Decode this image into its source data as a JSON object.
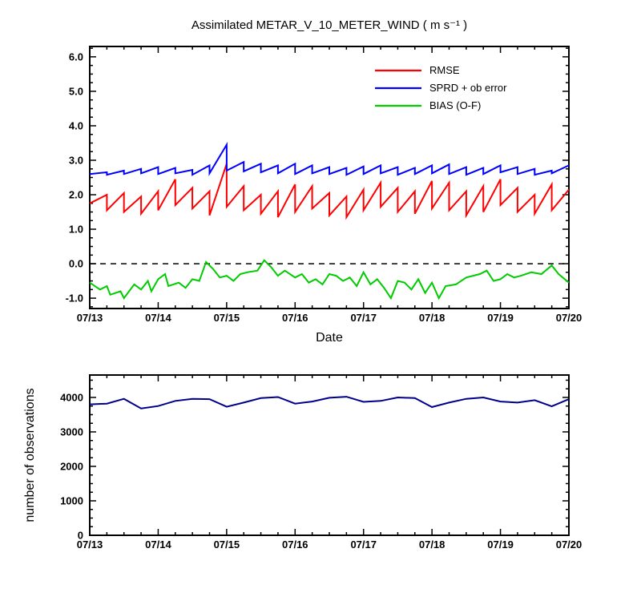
{
  "page": {
    "background": "#ffffff"
  },
  "chart_data": [
    {
      "type": "line",
      "title": "Assimilated METAR_V_10_METER_WIND ( m s⁻¹ )",
      "xlabel": "Date",
      "ylabel": "",
      "xlim": [
        0,
        7
      ],
      "ylim": [
        -1.3,
        6.3
      ],
      "x_tick_values": [
        0,
        1,
        2,
        3,
        4,
        5,
        6,
        7
      ],
      "x_tick_labels": [
        "07/13",
        "07/14",
        "07/15",
        "07/16",
        "07/17",
        "07/18",
        "07/19",
        "07/20"
      ],
      "x_minor_step": 0.25,
      "y_tick_values": [
        -1,
        0,
        1,
        2,
        3,
        4,
        5,
        6
      ],
      "y_tick_labels": [
        "-1.0",
        "0.0",
        "1.0",
        "2.0",
        "3.0",
        "4.0",
        "5.0",
        "6.0"
      ],
      "y_minor_step": 0.25,
      "grid": false,
      "zero_line": true,
      "legend_position": "upper-right-inside",
      "series": [
        {
          "name": "RMSE",
          "color": "#ff0000",
          "points": [
            [
              0,
              1.75
            ],
            [
              0.25,
              2.0
            ],
            [
              0.25,
              1.55
            ],
            [
              0.5,
              2.05
            ],
            [
              0.5,
              1.5
            ],
            [
              0.75,
              1.95
            ],
            [
              0.75,
              1.45
            ],
            [
              1,
              2.1
            ],
            [
              1,
              1.55
            ],
            [
              1.25,
              2.45
            ],
            [
              1.25,
              1.7
            ],
            [
              1.5,
              2.2
            ],
            [
              1.5,
              1.6
            ],
            [
              1.75,
              2.1
            ],
            [
              1.75,
              1.4
            ],
            [
              2,
              2.9
            ],
            [
              2,
              1.65
            ],
            [
              2.25,
              2.25
            ],
            [
              2.25,
              1.55
            ],
            [
              2.5,
              2.0
            ],
            [
              2.5,
              1.45
            ],
            [
              2.75,
              2.1
            ],
            [
              2.75,
              1.35
            ],
            [
              3,
              2.3
            ],
            [
              3,
              1.5
            ],
            [
              3.25,
              2.25
            ],
            [
              3.25,
              1.6
            ],
            [
              3.5,
              2.05
            ],
            [
              3.5,
              1.4
            ],
            [
              3.75,
              1.95
            ],
            [
              3.75,
              1.35
            ],
            [
              4,
              2.15
            ],
            [
              4,
              1.55
            ],
            [
              4.25,
              2.35
            ],
            [
              4.25,
              1.65
            ],
            [
              4.5,
              2.2
            ],
            [
              4.5,
              1.5
            ],
            [
              4.75,
              2.1
            ],
            [
              4.75,
              1.45
            ],
            [
              5,
              2.4
            ],
            [
              5,
              1.6
            ],
            [
              5.25,
              2.35
            ],
            [
              5.25,
              1.55
            ],
            [
              5.5,
              2.1
            ],
            [
              5.5,
              1.4
            ],
            [
              5.75,
              2.25
            ],
            [
              5.75,
              1.5
            ],
            [
              6,
              2.45
            ],
            [
              6,
              1.7
            ],
            [
              6.25,
              2.2
            ],
            [
              6.25,
              1.5
            ],
            [
              6.5,
              2.0
            ],
            [
              6.5,
              1.45
            ],
            [
              6.75,
              2.3
            ],
            [
              6.75,
              1.55
            ],
            [
              7,
              2.15
            ]
          ]
        },
        {
          "name": "SPRD + ob error",
          "color": "#0000ff",
          "points": [
            [
              0,
              2.6
            ],
            [
              0.25,
              2.65
            ],
            [
              0.25,
              2.58
            ],
            [
              0.5,
              2.7
            ],
            [
              0.5,
              2.6
            ],
            [
              0.75,
              2.75
            ],
            [
              0.75,
              2.62
            ],
            [
              1,
              2.8
            ],
            [
              1,
              2.6
            ],
            [
              1.25,
              2.78
            ],
            [
              1.25,
              2.62
            ],
            [
              1.5,
              2.72
            ],
            [
              1.5,
              2.58
            ],
            [
              1.75,
              2.85
            ],
            [
              1.75,
              2.62
            ],
            [
              2,
              3.45
            ],
            [
              2,
              2.7
            ],
            [
              2.25,
              2.95
            ],
            [
              2.25,
              2.68
            ],
            [
              2.5,
              2.9
            ],
            [
              2.5,
              2.65
            ],
            [
              2.75,
              2.85
            ],
            [
              2.75,
              2.62
            ],
            [
              3,
              2.9
            ],
            [
              3,
              2.6
            ],
            [
              3.25,
              2.85
            ],
            [
              3.25,
              2.62
            ],
            [
              3.5,
              2.8
            ],
            [
              3.5,
              2.6
            ],
            [
              3.75,
              2.78
            ],
            [
              3.75,
              2.58
            ],
            [
              4,
              2.82
            ],
            [
              4,
              2.6
            ],
            [
              4.25,
              2.85
            ],
            [
              4.25,
              2.62
            ],
            [
              4.5,
              2.8
            ],
            [
              4.5,
              2.58
            ],
            [
              4.75,
              2.78
            ],
            [
              4.75,
              2.6
            ],
            [
              5,
              2.85
            ],
            [
              5,
              2.62
            ],
            [
              5.25,
              2.88
            ],
            [
              5.25,
              2.6
            ],
            [
              5.5,
              2.8
            ],
            [
              5.5,
              2.58
            ],
            [
              5.75,
              2.78
            ],
            [
              5.75,
              2.6
            ],
            [
              6,
              2.85
            ],
            [
              6,
              2.65
            ],
            [
              6.25,
              2.8
            ],
            [
              6.25,
              2.6
            ],
            [
              6.5,
              2.75
            ],
            [
              6.5,
              2.58
            ],
            [
              6.75,
              2.7
            ],
            [
              6.75,
              2.62
            ],
            [
              7,
              2.85
            ]
          ]
        },
        {
          "name": "BIAS (O-F)",
          "color": "#00cc00",
          "points": [
            [
              0,
              -0.55
            ],
            [
              0.15,
              -0.75
            ],
            [
              0.25,
              -0.65
            ],
            [
              0.3,
              -0.9
            ],
            [
              0.45,
              -0.8
            ],
            [
              0.5,
              -1.0
            ],
            [
              0.65,
              -0.6
            ],
            [
              0.75,
              -0.75
            ],
            [
              0.85,
              -0.5
            ],
            [
              0.9,
              -0.8
            ],
            [
              1.0,
              -0.45
            ],
            [
              1.1,
              -0.3
            ],
            [
              1.15,
              -0.65
            ],
            [
              1.3,
              -0.55
            ],
            [
              1.4,
              -0.7
            ],
            [
              1.5,
              -0.45
            ],
            [
              1.6,
              -0.5
            ],
            [
              1.7,
              0.05
            ],
            [
              1.8,
              -0.15
            ],
            [
              1.9,
              -0.4
            ],
            [
              2.0,
              -0.35
            ],
            [
              2.1,
              -0.5
            ],
            [
              2.2,
              -0.3
            ],
            [
              2.3,
              -0.25
            ],
            [
              2.45,
              -0.2
            ],
            [
              2.55,
              0.1
            ],
            [
              2.65,
              -0.1
            ],
            [
              2.75,
              -0.35
            ],
            [
              2.85,
              -0.2
            ],
            [
              3.0,
              -0.4
            ],
            [
              3.1,
              -0.3
            ],
            [
              3.2,
              -0.55
            ],
            [
              3.3,
              -0.45
            ],
            [
              3.4,
              -0.6
            ],
            [
              3.5,
              -0.3
            ],
            [
              3.6,
              -0.35
            ],
            [
              3.7,
              -0.5
            ],
            [
              3.8,
              -0.4
            ],
            [
              3.9,
              -0.65
            ],
            [
              4.0,
              -0.25
            ],
            [
              4.1,
              -0.6
            ],
            [
              4.2,
              -0.45
            ],
            [
              4.3,
              -0.7
            ],
            [
              4.4,
              -1.0
            ],
            [
              4.5,
              -0.5
            ],
            [
              4.6,
              -0.55
            ],
            [
              4.7,
              -0.75
            ],
            [
              4.8,
              -0.45
            ],
            [
              4.9,
              -0.85
            ],
            [
              5.0,
              -0.55
            ],
            [
              5.1,
              -1.0
            ],
            [
              5.2,
              -0.65
            ],
            [
              5.35,
              -0.6
            ],
            [
              5.5,
              -0.4
            ],
            [
              5.6,
              -0.35
            ],
            [
              5.7,
              -0.3
            ],
            [
              5.8,
              -0.2
            ],
            [
              5.9,
              -0.5
            ],
            [
              6.0,
              -0.45
            ],
            [
              6.1,
              -0.3
            ],
            [
              6.2,
              -0.4
            ],
            [
              6.3,
              -0.35
            ],
            [
              6.45,
              -0.25
            ],
            [
              6.6,
              -0.3
            ],
            [
              6.75,
              -0.05
            ],
            [
              6.85,
              -0.3
            ],
            [
              7.0,
              -0.55
            ]
          ]
        }
      ]
    },
    {
      "type": "line",
      "title": "",
      "xlabel": "",
      "ylabel": "number of observations",
      "xlim": [
        0,
        7
      ],
      "ylim": [
        0,
        4650
      ],
      "x_tick_values": [
        0,
        1,
        2,
        3,
        4,
        5,
        6,
        7
      ],
      "x_tick_labels": [
        "07/13",
        "07/14",
        "07/15",
        "07/16",
        "07/17",
        "07/18",
        "07/19",
        "07/20"
      ],
      "x_minor_step": 0.25,
      "y_tick_values": [
        0,
        1000,
        2000,
        3000,
        4000
      ],
      "y_tick_labels": [
        "0",
        "1000",
        "2000",
        "3000",
        "4000"
      ],
      "y_minor_step": 250,
      "grid": false,
      "zero_line": false,
      "series": [
        {
          "name": "number of observations",
          "color": "#00008b",
          "points": [
            [
              0,
              3800
            ],
            [
              0.25,
              3820
            ],
            [
              0.5,
              3960
            ],
            [
              0.75,
              3680
            ],
            [
              1,
              3750
            ],
            [
              1.25,
              3900
            ],
            [
              1.5,
              3960
            ],
            [
              1.75,
              3950
            ],
            [
              2,
              3730
            ],
            [
              2.25,
              3850
            ],
            [
              2.5,
              3980
            ],
            [
              2.75,
              4010
            ],
            [
              3,
              3820
            ],
            [
              3.25,
              3880
            ],
            [
              3.5,
              3990
            ],
            [
              3.75,
              4020
            ],
            [
              4,
              3870
            ],
            [
              4.25,
              3900
            ],
            [
              4.5,
              4000
            ],
            [
              4.75,
              3980
            ],
            [
              5,
              3720
            ],
            [
              5.25,
              3850
            ],
            [
              5.5,
              3960
            ],
            [
              5.75,
              4000
            ],
            [
              6,
              3880
            ],
            [
              6.25,
              3850
            ],
            [
              6.5,
              3920
            ],
            [
              6.75,
              3740
            ],
            [
              7,
              3950
            ]
          ]
        }
      ]
    }
  ]
}
